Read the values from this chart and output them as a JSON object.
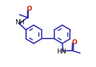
{
  "bg_color": "#ffffff",
  "bond_color": "#3030b0",
  "line_width": 1.2,
  "font_size": 6.5,
  "label_color": "#000000",
  "o_color": "#cc2200",
  "figsize": [
    1.36,
    0.94
  ],
  "dpi": 100,
  "xlim": [
    -2.5,
    2.5
  ],
  "ylim": [
    -2.2,
    2.0
  ]
}
